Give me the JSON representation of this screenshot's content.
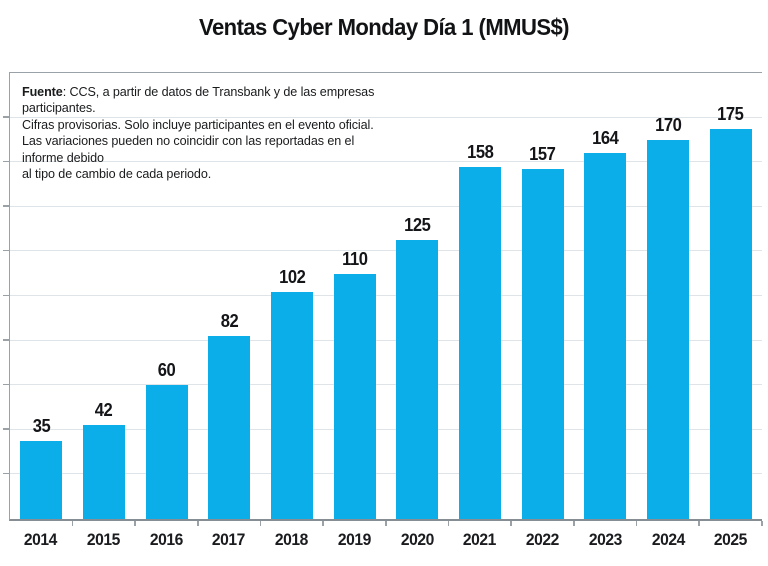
{
  "title": "Ventas Cyber Monday Día 1 (MMUS$)",
  "source_note": {
    "bold_prefix": "Fuente",
    "line1_rest": ": CCS, a partir de datos de Transbank y de las empresas participantes.",
    "line2": "Cifras provisorias. Solo incluye participantes en el evento oficial.",
    "line3": "Las variaciones pueden no coincidir con las reportadas en el informe debido",
    "line4": "al tipo de cambio de cada periodo."
  },
  "colors": {
    "bar": "#0caee9",
    "gridline": "#dfe4e8",
    "axis": "#9aa1a7",
    "text": "#17181a"
  },
  "chart_data": {
    "type": "bar",
    "title": "Ventas Cyber Monday Día 1 (MMUS$)",
    "categories": [
      "2014",
      "2015",
      "2016",
      "2017",
      "2018",
      "2019",
      "2020",
      "2021",
      "2022",
      "2023",
      "2024",
      "2025"
    ],
    "values": [
      35,
      42,
      60,
      82,
      102,
      110,
      125,
      158,
      157,
      164,
      170,
      175
    ],
    "xlabel": "",
    "ylabel": "",
    "ylim": [
      0,
      200
    ],
    "gridline_step": 20,
    "grid": true,
    "legend_position": "none",
    "bar_color": "#0caee9",
    "value_labels": "above-bars"
  }
}
